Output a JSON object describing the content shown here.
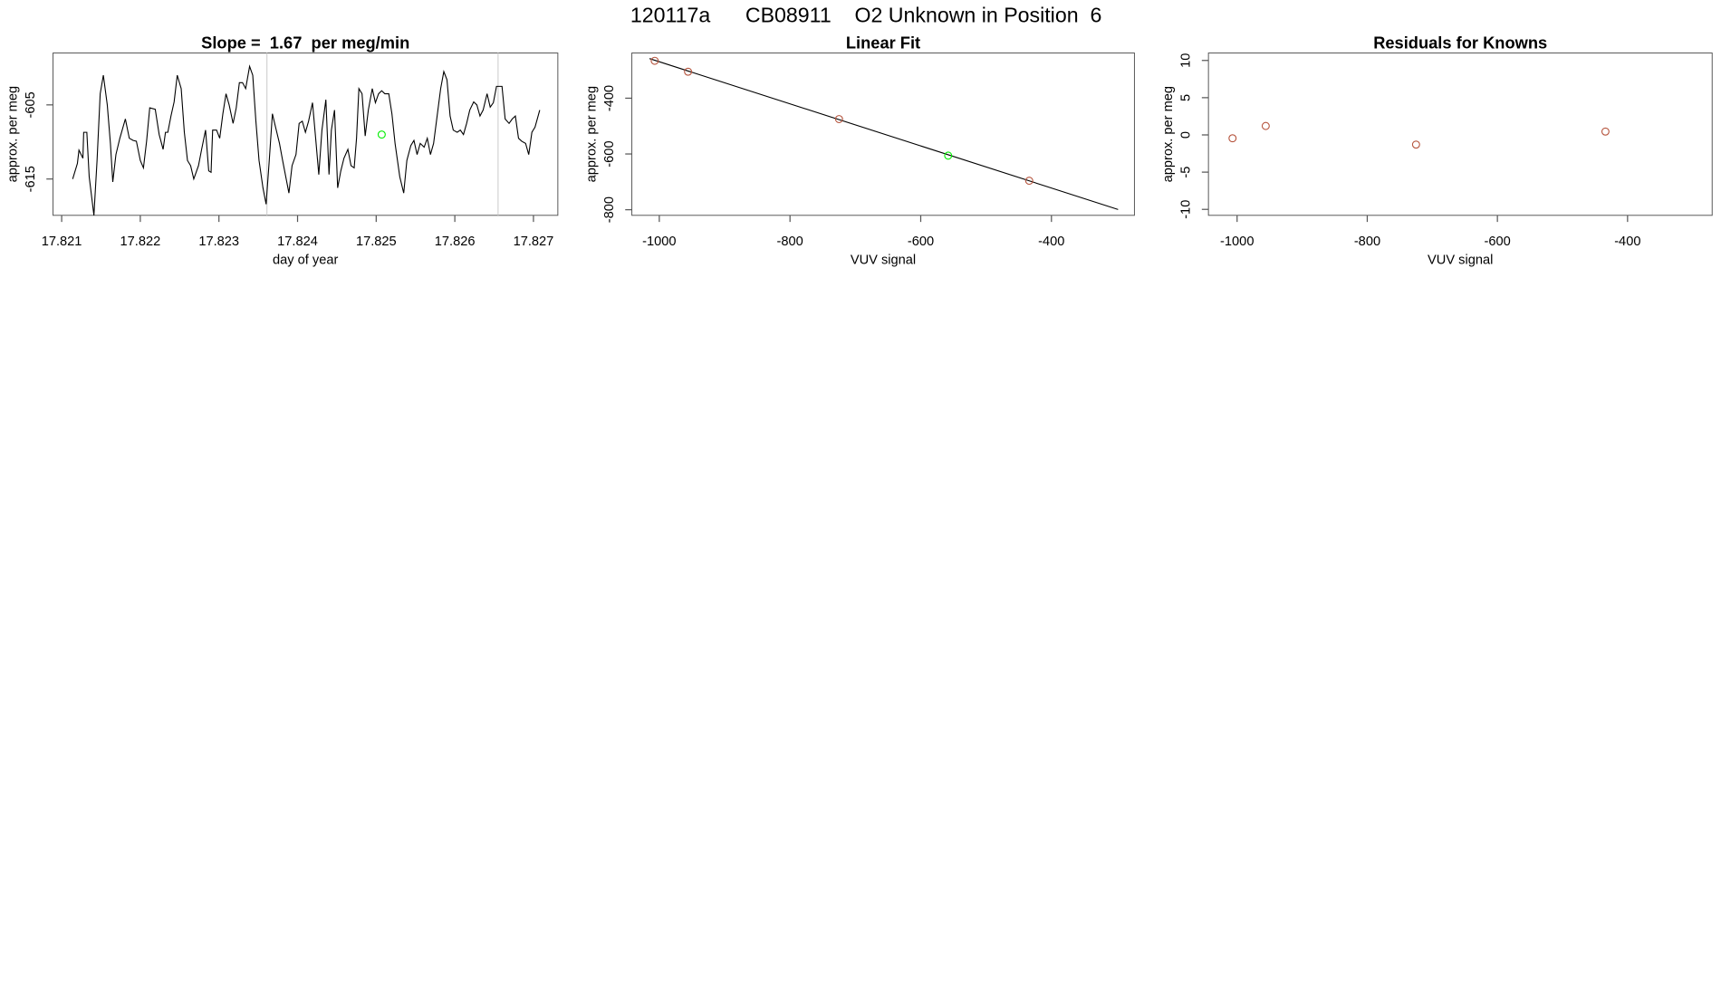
{
  "title": "120117a      CB08911    O2 Unknown in Position  6",
  "chart_data": [
    {
      "type": "line",
      "title": "Slope =  1.67  per meg/min",
      "xlabel": "day of year",
      "ylabel": "approx. per meg",
      "xlim": [
        17.82089,
        17.82731
      ],
      "ylim": [
        -619.9,
        -598.0
      ],
      "xticks": [
        17.821,
        17.822,
        17.823,
        17.824,
        17.825,
        17.826,
        17.827
      ],
      "yticks": [
        -615,
        -605
      ],
      "color": "#000000",
      "vlines": [
        17.82361,
        17.82655
      ],
      "vline_color": "#d3d3d3",
      "x": [
        17.82114,
        17.8212,
        17.82122,
        17.82127,
        17.82128,
        17.82132,
        17.82135,
        17.82141,
        17.82145,
        17.82149,
        17.82153,
        17.82158,
        17.82162,
        17.82165,
        17.82169,
        17.82174,
        17.82181,
        17.82186,
        17.82191,
        17.82195,
        17.822,
        17.82204,
        17.82208,
        17.82212,
        17.82219,
        17.82224,
        17.82229,
        17.82232,
        17.82235,
        17.82239,
        17.82243,
        17.82247,
        17.82252,
        17.82256,
        17.8226,
        17.82264,
        17.82268,
        17.82274,
        17.82278,
        17.82283,
        17.82287,
        17.8229,
        17.82292,
        17.82297,
        17.82301,
        17.82305,
        17.82309,
        17.82313,
        17.82318,
        17.82322,
        17.82326,
        17.8233,
        17.82334,
        17.82339,
        17.82343,
        17.82347,
        17.82351,
        17.82356,
        17.8236,
        17.82364,
        17.82368,
        17.82372,
        17.82377,
        17.82381,
        17.82385,
        17.82389,
        17.82393,
        17.82398,
        17.82402,
        17.82406,
        17.8241,
        17.82414,
        17.82419,
        17.82423,
        17.82427,
        17.82431,
        17.82436,
        17.8244,
        17.82443,
        17.82447,
        17.82451,
        17.82455,
        17.82459,
        17.82464,
        17.82468,
        17.82472,
        17.82475,
        17.82478,
        17.82482,
        17.82486,
        17.8249,
        17.82495,
        17.82499,
        17.82503,
        17.82507,
        17.82511,
        17.82516,
        17.8252,
        17.82524,
        17.8253,
        17.82535,
        17.82539,
        17.82544,
        17.82548,
        17.82552,
        17.82556,
        17.82561,
        17.82565,
        17.82569,
        17.82573,
        17.82577,
        17.82582,
        17.82586,
        17.8259,
        17.82594,
        17.82598,
        17.82603,
        17.82607,
        17.82611,
        17.82615,
        17.82619,
        17.82624,
        17.82628,
        17.82632,
        17.82636,
        17.82641,
        17.82645,
        17.82649,
        17.82653,
        17.8266,
        17.82664,
        17.82669,
        17.82673,
        17.82677,
        17.82681,
        17.82685,
        17.8269,
        17.82694,
        17.82698,
        17.82702,
        17.82708
      ],
      "values": [
        -615.0,
        -612.9,
        -611.1,
        -612.2,
        -608.7,
        -608.7,
        -614.7,
        -619.9,
        -612.5,
        -603.5,
        -601.0,
        -605.0,
        -610.2,
        -615.4,
        -611.7,
        -609.5,
        -606.9,
        -609.5,
        -609.8,
        -609.9,
        -612.5,
        -613.5,
        -609.9,
        -605.4,
        -605.6,
        -609.0,
        -611.0,
        -608.7,
        -608.7,
        -606.5,
        -604.6,
        -601.0,
        -602.8,
        -608.7,
        -612.5,
        -613.2,
        -615.0,
        -613.2,
        -611.0,
        -608.4,
        -613.9,
        -614.1,
        -608.4,
        -608.4,
        -609.5,
        -606.2,
        -603.5,
        -605.0,
        -607.5,
        -605.4,
        -602.0,
        -602.0,
        -602.8,
        -599.8,
        -601.0,
        -607.2,
        -612.5,
        -616.2,
        -618.4,
        -612.5,
        -606.2,
        -608.0,
        -610.2,
        -612.5,
        -614.7,
        -616.9,
        -613.2,
        -611.7,
        -607.5,
        -607.2,
        -608.7,
        -607.2,
        -604.7,
        -609.5,
        -614.4,
        -608.4,
        -604.3,
        -614.4,
        -608.4,
        -605.7,
        -616.2,
        -613.9,
        -612.2,
        -611.0,
        -613.2,
        -613.5,
        -609.5,
        -602.8,
        -603.5,
        -609.2,
        -605.7,
        -602.8,
        -604.7,
        -603.5,
        -603.1,
        -603.5,
        -603.5,
        -606.2,
        -610.2,
        -614.7,
        -616.9,
        -612.5,
        -610.5,
        -609.8,
        -611.7,
        -610.2,
        -610.7,
        -609.5,
        -611.7,
        -610.2,
        -606.9,
        -602.8,
        -600.5,
        -601.6,
        -606.5,
        -608.4,
        -608.7,
        -608.4,
        -609.0,
        -607.5,
        -605.7,
        -604.6,
        -605.0,
        -606.5,
        -605.7,
        -603.5,
        -605.3,
        -604.7,
        -602.5,
        -602.5,
        -606.9,
        -607.5,
        -606.9,
        -606.5,
        -609.5,
        -609.9,
        -610.2,
        -611.7,
        -608.7,
        -608.0,
        -605.7
      ],
      "highlight": {
        "x": 17.82507,
        "y": -609.0,
        "color": "#00ee00"
      }
    },
    {
      "type": "scatter",
      "title": "Linear Fit",
      "xlabel": "VUV signal",
      "ylabel": "approx. per meg",
      "xlim": [
        -1042,
        -273
      ],
      "ylim": [
        -820,
        -238
      ],
      "xticks": [
        -1000,
        -800,
        -600,
        -400
      ],
      "yticks": [
        -800,
        -600,
        -400
      ],
      "color": "#b5533c",
      "x": [
        -1007,
        -956,
        -725,
        -434
      ],
      "values": [
        -266,
        -305,
        -475,
        -696
      ],
      "fit_line": {
        "x": [
          -1015,
          -298
        ],
        "values": [
          -258,
          -799
        ],
        "color": "#000000"
      },
      "highlight": {
        "x": -558,
        "y": -606,
        "color": "#00ee00"
      }
    },
    {
      "type": "scatter",
      "title": "Residuals for Knowns",
      "xlabel": "VUV signal",
      "ylabel": "approx. per meg",
      "xlim": [
        -1044,
        -270
      ],
      "ylim": [
        -10.8,
        11.0
      ],
      "xticks": [
        -1000,
        -800,
        -600,
        -400
      ],
      "yticks": [
        -10,
        -5,
        0,
        5,
        10
      ],
      "color": "#b5533c",
      "x": [
        -1007,
        -956,
        -725,
        -434
      ],
      "values": [
        -0.45,
        1.2,
        -1.3,
        0.45
      ]
    }
  ]
}
